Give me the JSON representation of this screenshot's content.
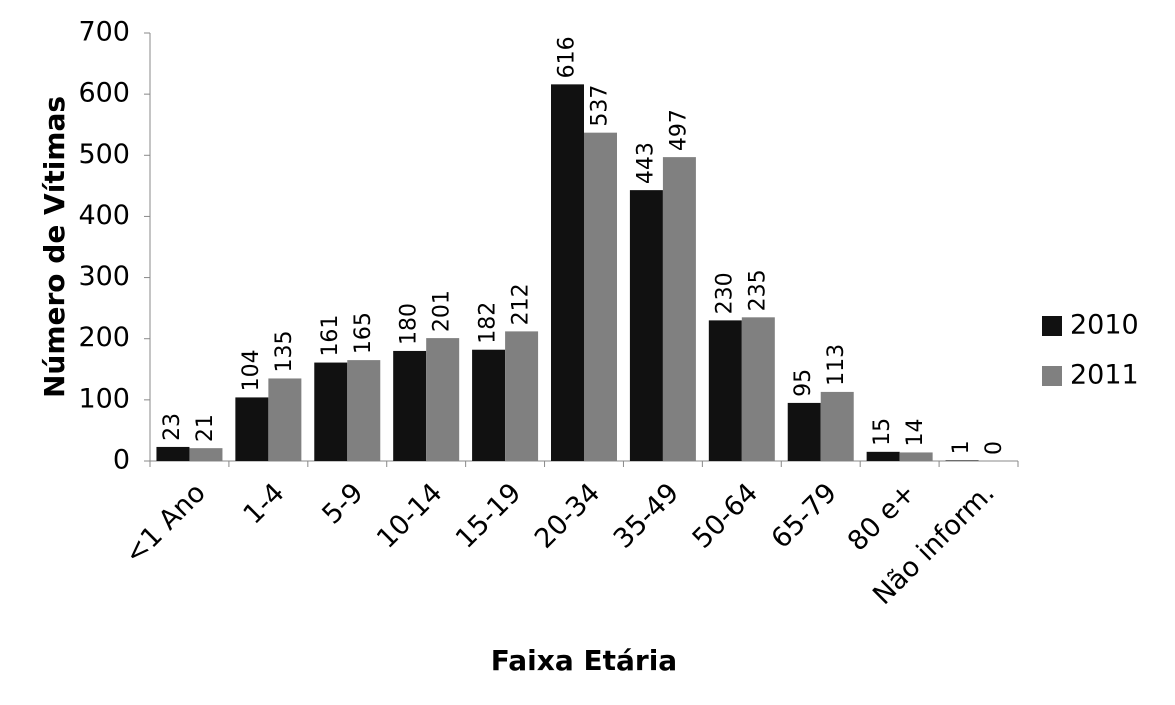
{
  "chart_data": {
    "type": "bar",
    "x_label": "Faixa Etária",
    "y_label": "Número de Vítimas",
    "categories": [
      "<1 Ano",
      "1-4",
      "5-9",
      "10-14",
      "15-19",
      "20-34",
      "35-49",
      "50-64",
      "65-79",
      "80 e+",
      "Não inform."
    ],
    "series": [
      {
        "name": "2010",
        "color": "#111111",
        "values": [
          23,
          104,
          161,
          180,
          182,
          616,
          443,
          230,
          95,
          15,
          1
        ]
      },
      {
        "name": "2011",
        "color": "#808080",
        "values": [
          21,
          135,
          165,
          201,
          212,
          537,
          497,
          235,
          113,
          14,
          0
        ]
      }
    ],
    "ylim": [
      0,
      700
    ],
    "yticks": [
      0,
      100,
      200,
      300,
      400,
      500,
      600,
      700
    ],
    "grid": false,
    "legend": "right"
  }
}
